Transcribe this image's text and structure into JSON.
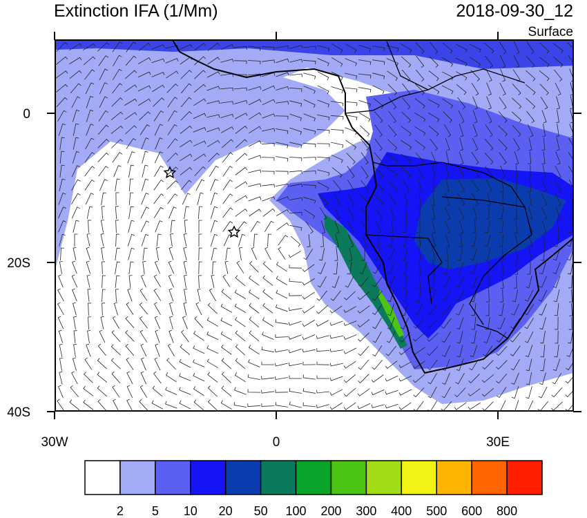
{
  "map": {
    "title": "Extinction IFA (1/Mm)",
    "time": "2018-09-30_12",
    "level": "Surface",
    "lat_ticks": [
      {
        "value": 0,
        "label": "0"
      },
      {
        "value": -20,
        "label": "20S"
      },
      {
        "value": -40,
        "label": "40S"
      }
    ],
    "lon_ticks": [
      {
        "value": -30,
        "label": "30W"
      },
      {
        "value": 0,
        "label": "0"
      },
      {
        "value": 30,
        "label": "30E"
      }
    ],
    "colorbar": {
      "levels": [
        2,
        5,
        10,
        20,
        50,
        100,
        200,
        300,
        400,
        500,
        600,
        800
      ],
      "colors": [
        "#ffffff",
        "#a3aaf6",
        "#5b60f3",
        "#1414f6",
        "#0a3cae",
        "#0b7a5c",
        "#0aa42a",
        "#4cc416",
        "#a2dc16",
        "#f2f214",
        "#ffb400",
        "#ff6400",
        "#ff1e00"
      ]
    }
  }
}
